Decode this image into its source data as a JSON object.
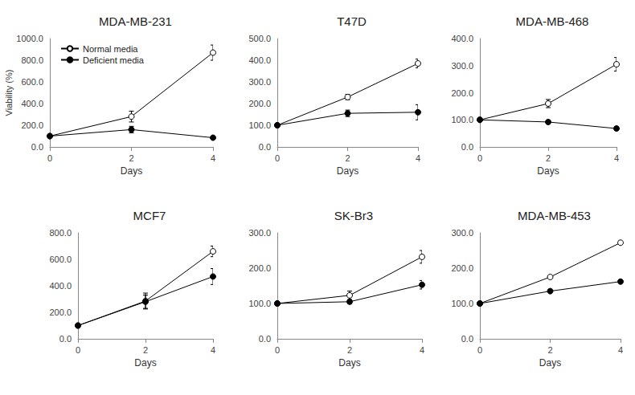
{
  "chart_data": [
    {
      "type": "line",
      "title": "MDA-MB-231",
      "x_label": "Days",
      "y_label": "Viability (%)",
      "x": [
        0,
        2,
        4
      ],
      "xlim": [
        0,
        4
      ],
      "xticks": [
        0,
        2,
        4
      ],
      "ylim": [
        0,
        1000
      ],
      "yticks": [
        {
          "value": 0,
          "label": "0.0"
        },
        {
          "value": 200,
          "label": "200.0"
        },
        {
          "value": 400,
          "label": "400.0"
        },
        {
          "value": 600,
          "label": "600.0"
        },
        {
          "value": 800,
          "label": "800.0"
        },
        {
          "value": 1000,
          "label": "1000.0"
        }
      ],
      "grid": false,
      "legend": "upper left",
      "series": [
        {
          "name": "Normal media",
          "color": "#000000",
          "marker": "open_circle",
          "values": [
            100,
            280,
            870
          ],
          "errors": [
            5,
            50,
            70
          ]
        },
        {
          "name": "Deficient media",
          "color": "#000000",
          "marker": "circle",
          "values": [
            100,
            160,
            85
          ],
          "errors": [
            5,
            30,
            10
          ]
        }
      ]
    },
    {
      "type": "line",
      "title": "T47D",
      "x_label": "Days",
      "x": [
        0,
        2,
        4
      ],
      "xlim": [
        0,
        4
      ],
      "xticks": [
        0,
        2,
        4
      ],
      "ylim": [
        0,
        500
      ],
      "yticks": [
        {
          "value": 0,
          "label": "0.0"
        },
        {
          "value": 100,
          "label": "100.0"
        },
        {
          "value": 200,
          "label": "200.0"
        },
        {
          "value": 300,
          "label": "300.0"
        },
        {
          "value": 400,
          "label": "400.0"
        },
        {
          "value": 500,
          "label": "500.0"
        }
      ],
      "grid": false,
      "series": [
        {
          "name": "Normal media",
          "color": "#000000",
          "marker": "open_circle",
          "values": [
            100,
            230,
            385
          ],
          "errors": [
            5,
            12,
            20
          ]
        },
        {
          "name": "Deficient media",
          "color": "#000000",
          "marker": "circle",
          "values": [
            100,
            155,
            160
          ],
          "errors": [
            5,
            15,
            35
          ]
        }
      ]
    },
    {
      "type": "line",
      "title": "MDA-MB-468",
      "x_label": "Days",
      "x": [
        0,
        2,
        4
      ],
      "xlim": [
        0,
        4
      ],
      "xticks": [
        0,
        2,
        4
      ],
      "ylim": [
        0,
        400
      ],
      "yticks": [
        {
          "value": 0,
          "label": "0.0"
        },
        {
          "value": 100,
          "label": "100.0"
        },
        {
          "value": 200,
          "label": "200.0"
        },
        {
          "value": 300,
          "label": "300.0"
        },
        {
          "value": 400,
          "label": "400.0"
        }
      ],
      "grid": false,
      "series": [
        {
          "name": "Normal media",
          "color": "#000000",
          "marker": "open_circle",
          "values": [
            100,
            160,
            305
          ],
          "errors": [
            5,
            15,
            25
          ]
        },
        {
          "name": "Deficient media",
          "color": "#000000",
          "marker": "circle",
          "values": [
            100,
            92,
            68
          ],
          "errors": [
            3,
            5,
            5
          ]
        }
      ]
    },
    {
      "type": "line",
      "title": "MCF7",
      "x_label": "Days",
      "x": [
        0,
        2,
        4
      ],
      "xlim": [
        0,
        4
      ],
      "xticks": [
        0,
        2,
        4
      ],
      "ylim": [
        0,
        800
      ],
      "yticks": [
        {
          "value": 0,
          "label": "0.0"
        },
        {
          "value": 200,
          "label": "200.0"
        },
        {
          "value": 400,
          "label": "400.0"
        },
        {
          "value": 600,
          "label": "600.0"
        },
        {
          "value": 800,
          "label": "800.0"
        }
      ],
      "grid": false,
      "series": [
        {
          "name": "Normal media",
          "color": "#000000",
          "marker": "open_circle",
          "values": [
            100,
            285,
            660
          ],
          "errors": [
            5,
            60,
            40
          ]
        },
        {
          "name": "Deficient media",
          "color": "#000000",
          "marker": "circle",
          "values": [
            100,
            280,
            470
          ],
          "errors": [
            5,
            50,
            60
          ]
        }
      ]
    },
    {
      "type": "line",
      "title": "SK-Br3",
      "x_label": "Days",
      "x": [
        0,
        2,
        4
      ],
      "xlim": [
        0,
        4
      ],
      "xticks": [
        0,
        2,
        4
      ],
      "ylim": [
        0,
        300
      ],
      "yticks": [
        {
          "value": 0,
          "label": "0.0"
        },
        {
          "value": 100,
          "label": "100.0"
        },
        {
          "value": 200,
          "label": "200.0"
        },
        {
          "value": 300,
          "label": "300.0"
        }
      ],
      "grid": false,
      "series": [
        {
          "name": "Normal media",
          "color": "#000000",
          "marker": "open_circle",
          "values": [
            100,
            123,
            232
          ],
          "errors": [
            3,
            12,
            18
          ]
        },
        {
          "name": "Deficient media",
          "color": "#000000",
          "marker": "circle",
          "values": [
            100,
            105,
            153
          ],
          "errors": [
            3,
            5,
            12
          ]
        }
      ]
    },
    {
      "type": "line",
      "title": "MDA-MB-453",
      "x_label": "Days",
      "x": [
        0,
        2,
        4
      ],
      "xlim": [
        0,
        4
      ],
      "xticks": [
        0,
        2,
        4
      ],
      "ylim": [
        0,
        300
      ],
      "yticks": [
        {
          "value": 0,
          "label": "0.0"
        },
        {
          "value": 100,
          "label": "100.0"
        },
        {
          "value": 200,
          "label": "200.0"
        },
        {
          "value": 300,
          "label": "300.0"
        }
      ],
      "grid": false,
      "series": [
        {
          "name": "Normal media",
          "color": "#000000",
          "marker": "open_circle",
          "values": [
            100,
            175,
            272
          ],
          "errors": [
            2,
            4,
            5
          ]
        },
        {
          "name": "Deficient media",
          "color": "#000000",
          "marker": "circle",
          "values": [
            100,
            135,
            162
          ],
          "errors": [
            2,
            3,
            4
          ]
        }
      ]
    }
  ]
}
